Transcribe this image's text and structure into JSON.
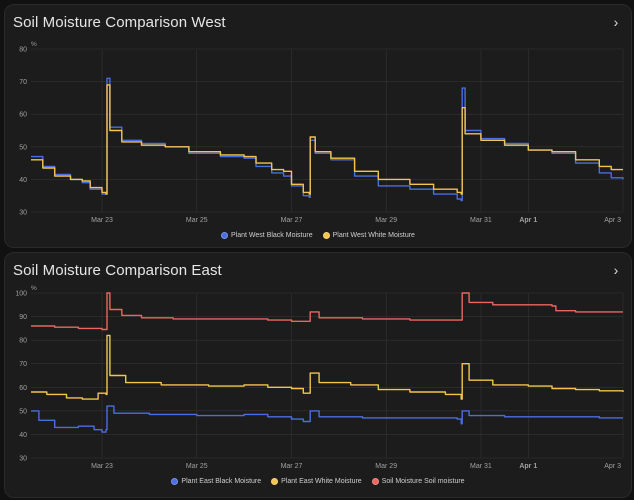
{
  "colors": {
    "blue": "#4a6ee0",
    "yellow": "#f5c44c",
    "red": "#e8675f",
    "grid": "#333333",
    "axis_text": "#a0a0a0"
  },
  "cards": {
    "west": {
      "title": "Soil Moisture Comparison West",
      "expand_icon": "chevron-right-icon"
    },
    "east": {
      "title": "Soil Moisture Comparison East",
      "expand_icon": "chevron-right-icon"
    }
  },
  "chart_data": [
    {
      "type": "line",
      "unit": "%",
      "ylim": [
        30,
        80
      ],
      "yticks": [
        30,
        40,
        50,
        60,
        70,
        80
      ],
      "xlim": [
        "2024-03-21T12:00",
        "2024-04-03T00:00"
      ],
      "xticks": [
        {
          "label": "Mar 23",
          "at": "2024-03-23",
          "bold": false
        },
        {
          "label": "Mar 25",
          "at": "2024-03-25",
          "bold": false
        },
        {
          "label": "Mar 27",
          "at": "2024-03-27",
          "bold": false
        },
        {
          "label": "Mar 29",
          "at": "2024-03-29",
          "bold": false
        },
        {
          "label": "Mar 31",
          "at": "2024-03-31",
          "bold": false
        },
        {
          "label": "Apr 1",
          "at": "2024-04-01",
          "bold": true
        },
        {
          "label": "Apr 3",
          "at": "2024-04-03",
          "bold": false
        }
      ],
      "grid": true,
      "legend": "bottom-center",
      "series": [
        {
          "name": "Plant West Black Moisture",
          "color": "#4a6ee0",
          "points": [
            [
              "2024-03-21T12:00",
              47
            ],
            [
              "2024-03-21T18:00",
              44
            ],
            [
              "2024-03-22T00:00",
              41.5
            ],
            [
              "2024-03-22T08:00",
              40
            ],
            [
              "2024-03-22T14:00",
              39
            ],
            [
              "2024-03-22T18:00",
              37
            ],
            [
              "2024-03-23T00:00",
              35.5
            ],
            [
              "2024-03-23T02:00",
              35.5
            ],
            [
              "2024-03-23T02:30",
              71
            ],
            [
              "2024-03-23T04:00",
              56
            ],
            [
              "2024-03-23T10:00",
              52
            ],
            [
              "2024-03-23T20:00",
              51
            ],
            [
              "2024-03-24T08:00",
              50
            ],
            [
              "2024-03-24T20:00",
              48
            ],
            [
              "2024-03-25T12:00",
              47
            ],
            [
              "2024-03-26T00:00",
              46.5
            ],
            [
              "2024-03-26T06:00",
              44
            ],
            [
              "2024-03-26T14:00",
              42
            ],
            [
              "2024-03-26T20:00",
              41
            ],
            [
              "2024-03-27T00:00",
              38
            ],
            [
              "2024-03-27T06:00",
              35
            ],
            [
              "2024-03-27T09:00",
              34.5
            ],
            [
              "2024-03-27T09:30",
              52
            ],
            [
              "2024-03-27T12:00",
              48
            ],
            [
              "2024-03-27T20:00",
              46
            ],
            [
              "2024-03-28T08:00",
              41
            ],
            [
              "2024-03-28T20:00",
              38
            ],
            [
              "2024-03-29T12:00",
              37
            ],
            [
              "2024-03-30T00:00",
              35.5
            ],
            [
              "2024-03-30T12:00",
              34
            ],
            [
              "2024-03-30T14:00",
              33.5
            ],
            [
              "2024-03-30T14:30",
              68
            ],
            [
              "2024-03-30T16:00",
              55
            ],
            [
              "2024-03-31T00:00",
              52.5
            ],
            [
              "2024-03-31T12:00",
              51
            ],
            [
              "2024-04-01T00:00",
              49
            ],
            [
              "2024-04-01T12:00",
              48
            ],
            [
              "2024-04-02T00:00",
              45
            ],
            [
              "2024-04-02T12:00",
              42
            ],
            [
              "2024-04-02T18:00",
              40.5
            ],
            [
              "2024-04-03T00:00",
              40
            ]
          ]
        },
        {
          "name": "Plant West White Moisture",
          "color": "#f5c44c",
          "points": [
            [
              "2024-03-21T12:00",
              46
            ],
            [
              "2024-03-21T18:00",
              43.5
            ],
            [
              "2024-03-22T00:00",
              41
            ],
            [
              "2024-03-22T08:00",
              40
            ],
            [
              "2024-03-22T14:00",
              39.5
            ],
            [
              "2024-03-22T18:00",
              37.5
            ],
            [
              "2024-03-23T00:00",
              36
            ],
            [
              "2024-03-23T02:00",
              35.5
            ],
            [
              "2024-03-23T02:30",
              69
            ],
            [
              "2024-03-23T04:00",
              55
            ],
            [
              "2024-03-23T10:00",
              51.5
            ],
            [
              "2024-03-23T20:00",
              50.5
            ],
            [
              "2024-03-24T08:00",
              50
            ],
            [
              "2024-03-24T20:00",
              48.5
            ],
            [
              "2024-03-25T12:00",
              47.5
            ],
            [
              "2024-03-26T00:00",
              47
            ],
            [
              "2024-03-26T06:00",
              45
            ],
            [
              "2024-03-26T14:00",
              43
            ],
            [
              "2024-03-26T20:00",
              42.5
            ],
            [
              "2024-03-27T00:00",
              38.5
            ],
            [
              "2024-03-27T06:00",
              36
            ],
            [
              "2024-03-27T09:00",
              35.5
            ],
            [
              "2024-03-27T09:30",
              53
            ],
            [
              "2024-03-27T12:00",
              48.5
            ],
            [
              "2024-03-27T20:00",
              46.5
            ],
            [
              "2024-03-28T08:00",
              42.5
            ],
            [
              "2024-03-28T20:00",
              40
            ],
            [
              "2024-03-29T12:00",
              38.5
            ],
            [
              "2024-03-30T00:00",
              37
            ],
            [
              "2024-03-30T12:00",
              36
            ],
            [
              "2024-03-30T14:00",
              35.5
            ],
            [
              "2024-03-30T14:30",
              62
            ],
            [
              "2024-03-30T16:00",
              54
            ],
            [
              "2024-03-31T00:00",
              52
            ],
            [
              "2024-03-31T12:00",
              50.5
            ],
            [
              "2024-04-01T00:00",
              49
            ],
            [
              "2024-04-01T12:00",
              48.5
            ],
            [
              "2024-04-02T00:00",
              46
            ],
            [
              "2024-04-02T12:00",
              44
            ],
            [
              "2024-04-02T18:00",
              43
            ],
            [
              "2024-04-03T00:00",
              43
            ]
          ]
        }
      ]
    },
    {
      "type": "line",
      "unit": "%",
      "ylim": [
        30,
        100
      ],
      "yticks": [
        30,
        40,
        50,
        60,
        70,
        80,
        90,
        100
      ],
      "xlim": [
        "2024-03-21T12:00",
        "2024-04-03T00:00"
      ],
      "xticks": [
        {
          "label": "Mar 23",
          "at": "2024-03-23",
          "bold": false
        },
        {
          "label": "Mar 25",
          "at": "2024-03-25",
          "bold": false
        },
        {
          "label": "Mar 27",
          "at": "2024-03-27",
          "bold": false
        },
        {
          "label": "Mar 29",
          "at": "2024-03-29",
          "bold": false
        },
        {
          "label": "Mar 31",
          "at": "2024-03-31",
          "bold": false
        },
        {
          "label": "Apr 1",
          "at": "2024-04-01",
          "bold": true
        },
        {
          "label": "Apr 3",
          "at": "2024-04-03",
          "bold": false
        }
      ],
      "grid": true,
      "legend": "bottom-center",
      "series": [
        {
          "name": "Plant East Black Moisture",
          "color": "#4a6ee0",
          "points": [
            [
              "2024-03-21T12:00",
              50
            ],
            [
              "2024-03-21T16:00",
              46
            ],
            [
              "2024-03-22T00:00",
              43
            ],
            [
              "2024-03-22T12:00",
              43.5
            ],
            [
              "2024-03-22T20:00",
              42
            ],
            [
              "2024-03-23T00:00",
              41
            ],
            [
              "2024-03-23T02:00",
              42
            ],
            [
              "2024-03-23T02:30",
              52
            ],
            [
              "2024-03-23T06:00",
              49
            ],
            [
              "2024-03-24T00:00",
              48.5
            ],
            [
              "2024-03-25T00:00",
              48
            ],
            [
              "2024-03-26T00:00",
              48.5
            ],
            [
              "2024-03-26T12:00",
              47.5
            ],
            [
              "2024-03-27T00:00",
              46.5
            ],
            [
              "2024-03-27T06:00",
              45.5
            ],
            [
              "2024-03-27T09:30",
              50
            ],
            [
              "2024-03-27T14:00",
              47.5
            ],
            [
              "2024-03-28T12:00",
              47
            ],
            [
              "2024-03-29T12:00",
              47
            ],
            [
              "2024-03-30T12:00",
              46.5
            ],
            [
              "2024-03-30T14:00",
              44.5
            ],
            [
              "2024-03-30T14:30",
              50
            ],
            [
              "2024-03-30T18:00",
              48
            ],
            [
              "2024-03-31T12:00",
              47.5
            ],
            [
              "2024-04-01T12:00",
              47.5
            ],
            [
              "2024-04-02T12:00",
              47
            ],
            [
              "2024-04-03T00:00",
              47
            ]
          ]
        },
        {
          "name": "Plant East White Moisture",
          "color": "#f5c44c",
          "points": [
            [
              "2024-03-21T12:00",
              58
            ],
            [
              "2024-03-21T20:00",
              57
            ],
            [
              "2024-03-22T06:00",
              55.5
            ],
            [
              "2024-03-22T14:00",
              55
            ],
            [
              "2024-03-22T22:00",
              57.5
            ],
            [
              "2024-03-23T02:00",
              57
            ],
            [
              "2024-03-23T02:30",
              82
            ],
            [
              "2024-03-23T04:00",
              65
            ],
            [
              "2024-03-23T12:00",
              62
            ],
            [
              "2024-03-24T06:00",
              61
            ],
            [
              "2024-03-25T06:00",
              60.5
            ],
            [
              "2024-03-26T00:00",
              61
            ],
            [
              "2024-03-26T12:00",
              60
            ],
            [
              "2024-03-27T00:00",
              59.5
            ],
            [
              "2024-03-27T06:00",
              57.5
            ],
            [
              "2024-03-27T09:30",
              66
            ],
            [
              "2024-03-27T14:00",
              62
            ],
            [
              "2024-03-28T06:00",
              61
            ],
            [
              "2024-03-28T20:00",
              59
            ],
            [
              "2024-03-29T12:00",
              58
            ],
            [
              "2024-03-30T06:00",
              57
            ],
            [
              "2024-03-30T14:00",
              55
            ],
            [
              "2024-03-30T14:30",
              70
            ],
            [
              "2024-03-30T18:00",
              63
            ],
            [
              "2024-03-31T06:00",
              61
            ],
            [
              "2024-04-01T00:00",
              60.5
            ],
            [
              "2024-04-01T12:00",
              59.5
            ],
            [
              "2024-04-02T00:00",
              59
            ],
            [
              "2024-04-02T12:00",
              58.5
            ],
            [
              "2024-04-03T00:00",
              58
            ]
          ]
        },
        {
          "name": "Soil Moisture Soil moisture",
          "color": "#e8675f",
          "points": [
            [
              "2024-03-21T12:00",
              86
            ],
            [
              "2024-03-22T00:00",
              85.5
            ],
            [
              "2024-03-22T12:00",
              85
            ],
            [
              "2024-03-23T00:00",
              84.5
            ],
            [
              "2024-03-23T02:00",
              84.5
            ],
            [
              "2024-03-23T02:30",
              100
            ],
            [
              "2024-03-23T04:00",
              93
            ],
            [
              "2024-03-23T10:00",
              90.5
            ],
            [
              "2024-03-23T20:00",
              89.5
            ],
            [
              "2024-03-24T12:00",
              89
            ],
            [
              "2024-03-25T12:00",
              89
            ],
            [
              "2024-03-26T12:00",
              88.5
            ],
            [
              "2024-03-27T00:00",
              88
            ],
            [
              "2024-03-27T09:00",
              88
            ],
            [
              "2024-03-27T09:30",
              92
            ],
            [
              "2024-03-27T14:00",
              89.5
            ],
            [
              "2024-03-28T12:00",
              89
            ],
            [
              "2024-03-29T12:00",
              88.5
            ],
            [
              "2024-03-30T12:00",
              88.5
            ],
            [
              "2024-03-30T14:00",
              88.5
            ],
            [
              "2024-03-30T14:30",
              100
            ],
            [
              "2024-03-30T18:00",
              96
            ],
            [
              "2024-03-31T06:00",
              95
            ],
            [
              "2024-04-01T12:00",
              94.5
            ],
            [
              "2024-04-01T14:00",
              92.5
            ],
            [
              "2024-04-02T00:00",
              92
            ],
            [
              "2024-04-03T00:00",
              92
            ]
          ]
        }
      ]
    }
  ]
}
